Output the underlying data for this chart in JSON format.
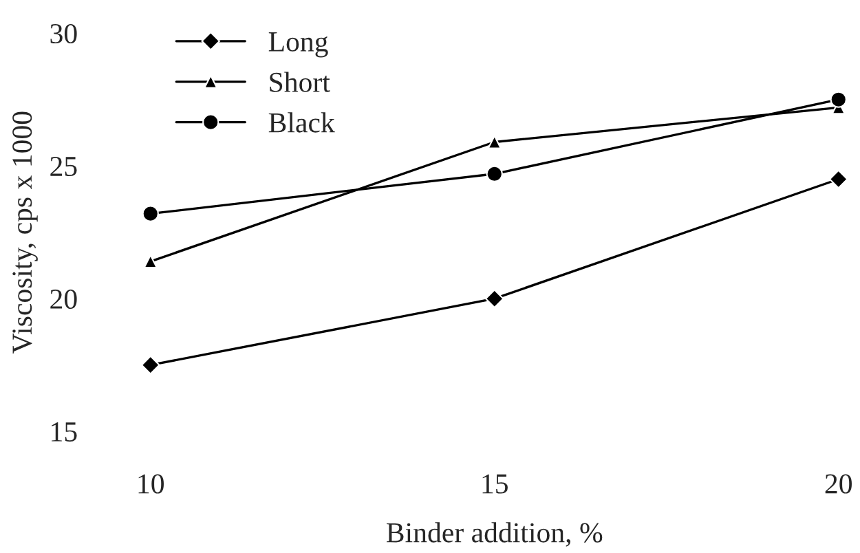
{
  "chart_data": {
    "type": "line",
    "xlabel": "Binder addition, %",
    "ylabel": "Viscosity, cps x 1000",
    "x": [
      10,
      15,
      20
    ],
    "xlim": [
      10,
      20
    ],
    "xticks": [
      10,
      15,
      20
    ],
    "ylim": [
      15,
      30
    ],
    "yticks": [
      15,
      20,
      25,
      30
    ],
    "grid": false,
    "legend": "top left",
    "series": [
      {
        "name": "Long",
        "color": "#000000",
        "marker": "diamond",
        "values": [
          17.5,
          20.0,
          24.5
        ]
      },
      {
        "name": "Short",
        "color": "#000000",
        "marker": "triangle",
        "values": [
          21.4,
          25.9,
          27.2
        ]
      },
      {
        "name": "Black",
        "color": "#000000",
        "marker": "circle",
        "values": [
          23.2,
          24.7,
          27.5
        ]
      }
    ]
  }
}
